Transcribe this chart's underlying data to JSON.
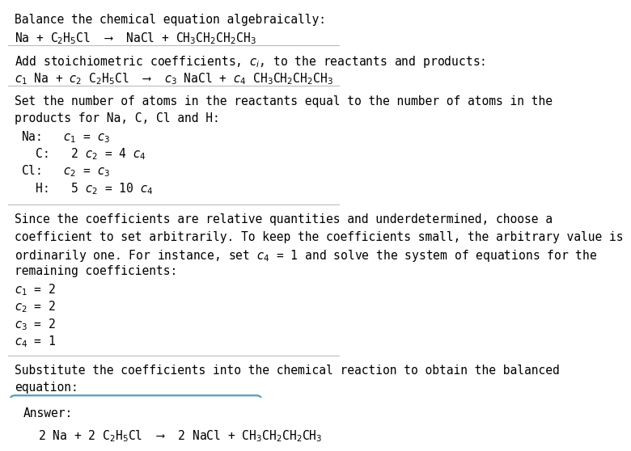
{
  "title": "Balance the chemical equation algebraically:",
  "eq1": "Na + C$_2$H$_5$Cl  ⟶  NaCl + CH$_3$CH$_2$CH$_2$CH$_3$",
  "section2_intro": "Add stoichiometric coefficients, $c_i$, to the reactants and products:",
  "eq2": "$c_1$ Na + $c_2$ C$_2$H$_5$Cl  ⟶  $c_3$ NaCl + $c_4$ CH$_3$CH$_2$CH$_2$CH$_3$",
  "section3_intro_lines": [
    "Set the number of atoms in the reactants equal to the number of atoms in the",
    "products for Na, C, Cl and H:"
  ],
  "equations": [
    "Na:   $c_1$ = $c_3$",
    "  C:   2 $c_2$ = 4 $c_4$",
    "Cl:   $c_2$ = $c_3$",
    "  H:   5 $c_2$ = 10 $c_4$"
  ],
  "section4_intro_lines": [
    "Since the coefficients are relative quantities and underdetermined, choose a",
    "coefficient to set arbitrarily. To keep the coefficients small, the arbitrary value is",
    "ordinarily one. For instance, set $c_4$ = 1 and solve the system of equations for the",
    "remaining coefficients:"
  ],
  "solutions": [
    "$c_1$ = 2",
    "$c_2$ = 2",
    "$c_3$ = 2",
    "$c_4$ = 1"
  ],
  "section5_intro_lines": [
    "Substitute the coefficients into the chemical reaction to obtain the balanced",
    "equation:"
  ],
  "answer_label": "Answer:",
  "answer_eq": "2 Na + 2 C$_2$H$_5$Cl  ⟶  2 NaCl + CH$_3$CH$_2$CH$_2$CH$_3$",
  "bg_color": "#ffffff",
  "text_color": "#000000",
  "line_color": "#bbbbbb",
  "answer_box_color": "#e8f4f8",
  "answer_box_border": "#5599bb",
  "font_size": 10.5,
  "mono_font": "DejaVu Sans Mono"
}
